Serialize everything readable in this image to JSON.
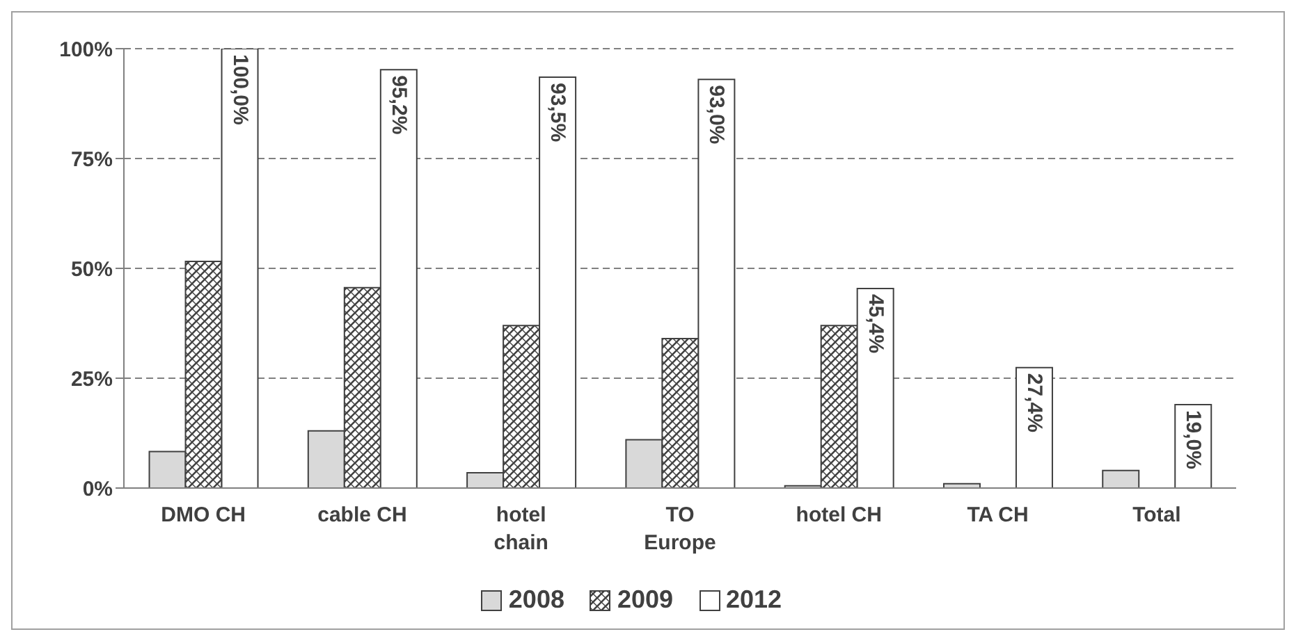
{
  "chart_data": {
    "type": "bar",
    "categories": [
      "DMO CH",
      "cable CH",
      "hotel chain",
      "TO Europe",
      "hotel CH",
      "TA CH",
      "Total"
    ],
    "series": [
      {
        "name": "2008",
        "color": "#d9d9d9",
        "values": [
          8.3,
          13,
          3.5,
          11,
          0.5,
          1,
          4
        ]
      },
      {
        "name": "2009",
        "color": "#404040",
        "values": [
          51.6,
          45.6,
          37,
          34,
          37,
          null,
          null
        ]
      },
      {
        "name": "2012",
        "color": "#ffffff",
        "values": [
          100,
          95.2,
          93.5,
          93,
          45.4,
          27.4,
          19
        ],
        "value_labels": [
          "100,0%",
          "95,2%",
          "93,5%",
          "93,0%",
          "45,4%",
          "27,4%",
          "19,0%"
        ]
      }
    ],
    "ylim": [
      0,
      100
    ],
    "yticks": [
      {
        "value": 0,
        "label": "0%"
      },
      {
        "value": 25,
        "label": "25%"
      },
      {
        "value": 50,
        "label": "50%"
      },
      {
        "value": 75,
        "label": "75%"
      },
      {
        "value": 100,
        "label": "100%"
      }
    ],
    "grid": "y",
    "legend": "bottom"
  }
}
